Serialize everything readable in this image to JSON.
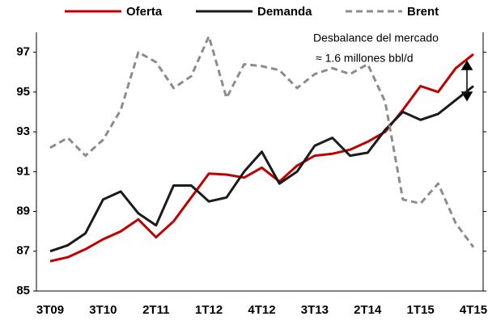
{
  "chart_data": {
    "type": "line",
    "categories": [
      "3T09",
      null,
      null,
      "3T10",
      null,
      null,
      "2T11",
      null,
      null,
      "1T12",
      null,
      null,
      "4T12",
      null,
      null,
      "3T13",
      null,
      null,
      "2T14",
      null,
      null,
      "1T15",
      null,
      null,
      "4T15"
    ],
    "series": [
      {
        "name": "Oferta",
        "color": "#c00000",
        "dash": false,
        "values": [
          86.5,
          86.7,
          87.1,
          87.6,
          88.0,
          88.6,
          87.7,
          88.5,
          89.7,
          90.9,
          90.85,
          90.7,
          91.2,
          90.5,
          91.3,
          91.8,
          91.9,
          92.1,
          92.5,
          93.0,
          94.1,
          95.3,
          95.0,
          96.2,
          96.9
        ]
      },
      {
        "name": "Demanda",
        "color": "#1a1a1a",
        "dash": false,
        "values": [
          87.0,
          87.3,
          87.9,
          89.6,
          90.0,
          88.9,
          88.3,
          90.3,
          90.3,
          89.5,
          89.7,
          91.0,
          92.0,
          90.4,
          91.0,
          92.3,
          92.7,
          91.8,
          91.95,
          93.1,
          94.0,
          93.6,
          93.9,
          94.6,
          95.3
        ]
      },
      {
        "name": "Brent",
        "color": "#8c8c8c",
        "dash": true,
        "values": [
          92.2,
          92.7,
          91.8,
          92.6,
          94.1,
          97.0,
          96.5,
          95.2,
          95.8,
          97.8,
          94.7,
          96.4,
          96.3,
          96.1,
          95.2,
          95.9,
          96.2,
          95.9,
          96.4,
          94.5,
          89.6,
          89.4,
          90.4,
          88.4,
          87.2
        ]
      }
    ],
    "ylim": [
      85,
      98
    ],
    "yticks": [
      85,
      87,
      89,
      91,
      93,
      95,
      97
    ],
    "annotations": [
      "Desbalance del mercado",
      "≈ 1.6 millones bbl/d"
    ]
  }
}
